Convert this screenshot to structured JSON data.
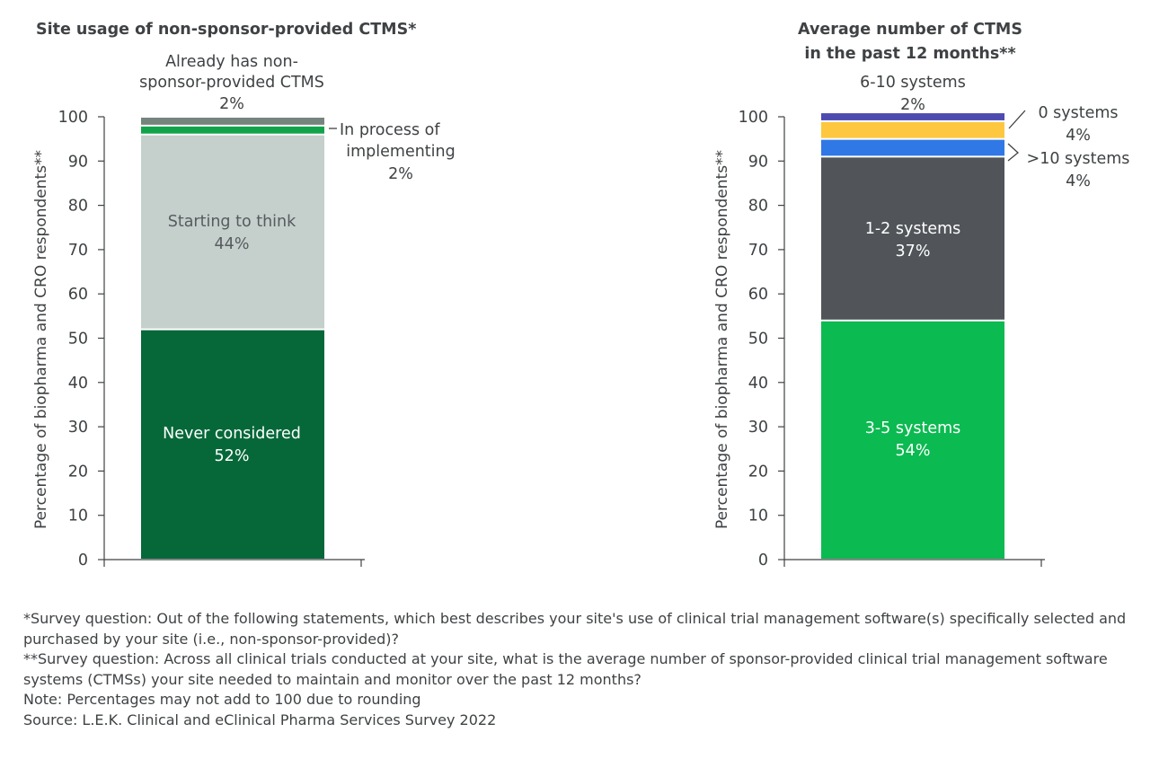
{
  "chart_data": [
    {
      "type": "stacked-bar",
      "title": "Site usage of non-sponsor-provided CTMS*",
      "ylabel": "Percentage of biopharma and CRO respondents**",
      "ylim": [
        0,
        100
      ],
      "yticks": [
        0,
        10,
        20,
        30,
        40,
        50,
        60,
        70,
        80,
        90,
        100
      ],
      "segments": [
        {
          "name": "Never considered",
          "value": 52,
          "label": "52%",
          "color": "#066839"
        },
        {
          "name": "Starting to think",
          "value": 44,
          "label": "44%",
          "color": "#c5cfcc"
        },
        {
          "name": "In process of implementing",
          "value": 2,
          "label": "2%",
          "color": "#12a34a"
        },
        {
          "name": "Already has non-sponsor-provided CTMS",
          "value": 2,
          "label": "2%",
          "color": "#75857e"
        }
      ]
    },
    {
      "type": "stacked-bar",
      "title": "Average number of CTMS in the past 12 months**",
      "ylabel": "Percentage of biopharma and CRO respondents**",
      "ylim": [
        0,
        100
      ],
      "yticks": [
        0,
        10,
        20,
        30,
        40,
        50,
        60,
        70,
        80,
        90,
        100
      ],
      "segments": [
        {
          "name": "3-5 systems",
          "value": 54,
          "label": "54%",
          "color": "#0bba50"
        },
        {
          "name": "1-2 systems",
          "value": 37,
          "label": "37%",
          "color": "#51555a"
        },
        {
          "name": ">10 systems",
          "value": 4,
          "label": "4%",
          "color": "#2f78e6"
        },
        {
          "name": "0 systems",
          "value": 4,
          "label": "4%",
          "color": "#fdc83f"
        },
        {
          "name": "6-10 systems",
          "value": 2,
          "label": "2%",
          "color": "#4d4ab0"
        }
      ]
    }
  ],
  "labels": {
    "c1_top": [
      "Already has non-",
      "sponsor-provided CTMS",
      "2%"
    ],
    "c1_side": [
      "In process of",
      "implementing",
      "2%"
    ],
    "c2_title": [
      "Average number of CTMS",
      "in the past 12 months**"
    ],
    "c2_top": [
      "6-10 systems",
      "2%"
    ],
    "c2_zero": [
      "0 systems",
      "4%"
    ],
    "c2_ten": [
      ">10 systems",
      "4%"
    ]
  },
  "footnotes": [
    "*Survey question: Out of the following statements, which best describes your site's use of clinical trial management software(s) specifically selected and purchased by your site (i.e., non-sponsor-provided)?",
    "**Survey question: Across all clinical trials conducted at your site, what is the average number of sponsor-provided clinical trial management software systems (CTMSs) your site needed to maintain and monitor over the past 12 months?",
    "Note: Percentages may not add to 100 due to rounding",
    "Source: L.E.K. Clinical and eClinical Pharma Services Survey 2022"
  ],
  "colors": {
    "text": "#3f4244",
    "axis": "#3f4244",
    "white_text": "#ffffff"
  }
}
